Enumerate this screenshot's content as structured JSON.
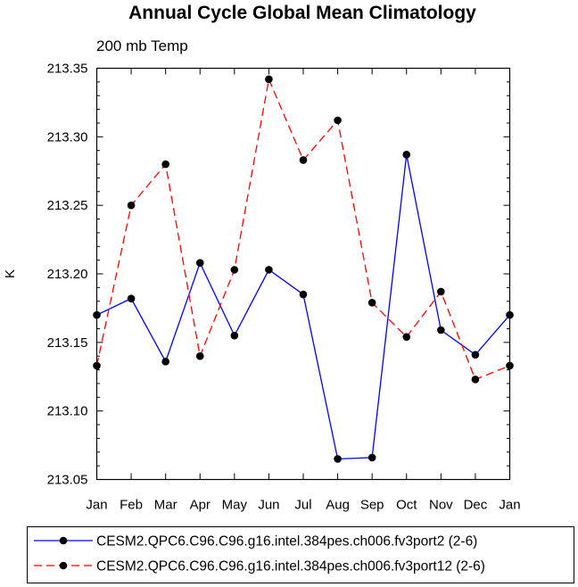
{
  "chart_data": {
    "type": "line",
    "title": "Annual Cycle Global Mean Climatology",
    "subtitle": "200 mb Temp",
    "xlabel": "",
    "ylabel": "K",
    "categories": [
      "Jan",
      "Feb",
      "Mar",
      "Apr",
      "May",
      "Jun",
      "Jul",
      "Aug",
      "Sep",
      "Oct",
      "Nov",
      "Dec",
      "Jan"
    ],
    "ylim": [
      213.05,
      213.35
    ],
    "yticks": [
      "213.05",
      "213.10",
      "213.15",
      "213.20",
      "213.25",
      "213.30",
      "213.35"
    ],
    "grid": false,
    "legend_position": "bottom",
    "series": [
      {
        "name": "CESM2.QPC6.C96.C96.g16.intel.384pes.ch006.fv3port2 (2-6)",
        "color": "#0000ff",
        "dash": "solid",
        "values": [
          213.17,
          213.182,
          213.136,
          213.208,
          213.155,
          213.203,
          213.185,
          213.065,
          213.066,
          213.287,
          213.159,
          213.141,
          213.17
        ]
      },
      {
        "name": "CESM2.QPC6.C96.C96.g16.intel.384pes.ch006.fv3port12 (2-6)",
        "color": "#ff0000",
        "dash": "dashed",
        "values": [
          213.133,
          213.25,
          213.28,
          213.14,
          213.203,
          213.342,
          213.283,
          213.312,
          213.179,
          213.154,
          213.187,
          213.123,
          213.133
        ]
      }
    ]
  }
}
